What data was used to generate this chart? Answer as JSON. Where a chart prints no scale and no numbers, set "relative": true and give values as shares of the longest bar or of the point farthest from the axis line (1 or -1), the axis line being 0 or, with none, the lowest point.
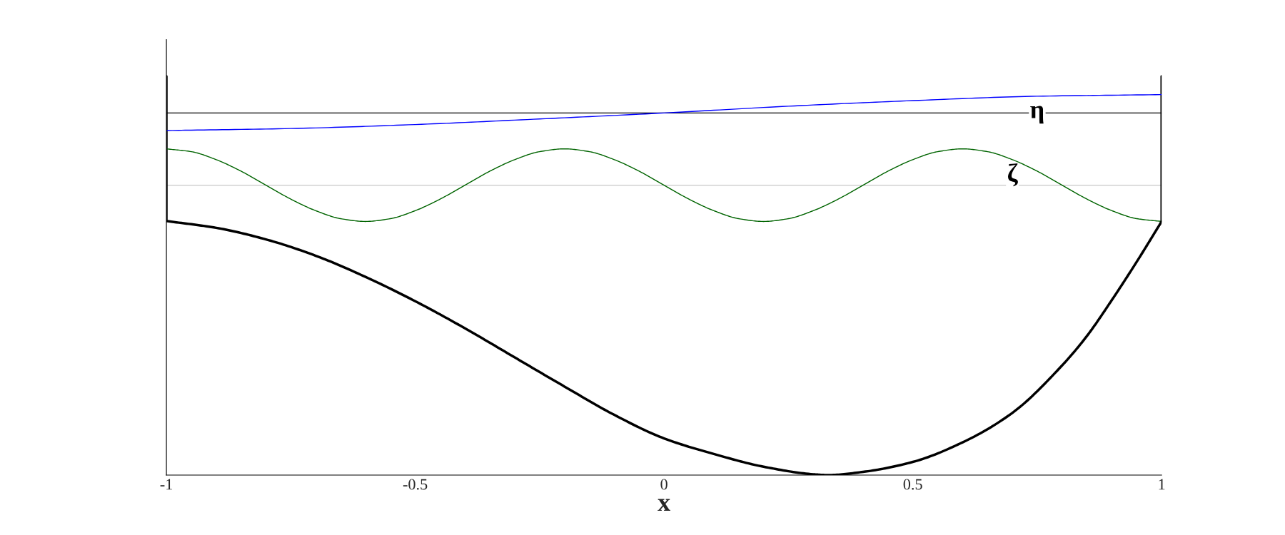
{
  "chart_data": {
    "type": "line",
    "relative": true,
    "xlabel": "x",
    "xlim": [
      -1,
      1
    ],
    "xticks": [
      -1,
      -0.5,
      0,
      0.5,
      1
    ],
    "tick_labels": "x",
    "grid": false,
    "legend": false,
    "series": [
      {
        "color": "#000000",
        "x": [
          -1,
          -1
        ],
        "values": [
          0.637,
          1.0
        ]
      },
      {
        "color": "#000000",
        "x": [
          1,
          1
        ],
        "values": [
          0.636,
          1.0
        ]
      },
      {
        "name": "η",
        "color": "#0000ff",
        "x": [
          -1,
          -0.75,
          -0.5,
          -0.25,
          0,
          0.25,
          0.5,
          0.75,
          1
        ],
        "values": [
          0.864,
          0.869,
          0.879,
          0.893,
          0.908,
          0.925,
          0.939,
          0.95,
          0.954
        ]
      },
      {
        "name": "ζ",
        "color": "#006400",
        "x": [
          -1,
          -0.95,
          -0.9,
          -0.85,
          -0.8,
          -0.75,
          -0.7,
          -0.65,
          -0.6,
          -0.55,
          -0.5,
          -0.45,
          -0.4,
          -0.35,
          -0.3,
          -0.25,
          -0.2,
          -0.15,
          -0.1,
          -0.05,
          0,
          0.05,
          0.1,
          0.15,
          0.2,
          0.25,
          0.3,
          0.35,
          0.4,
          0.45,
          0.5,
          0.55,
          0.6,
          0.65,
          0.7,
          0.75,
          0.8,
          0.85,
          0.9,
          0.95,
          1
        ],
        "values": [
          0.818,
          0.811,
          0.791,
          0.762,
          0.727,
          0.692,
          0.663,
          0.643,
          0.636,
          0.643,
          0.663,
          0.692,
          0.727,
          0.762,
          0.791,
          0.811,
          0.818,
          0.811,
          0.791,
          0.762,
          0.727,
          0.692,
          0.663,
          0.643,
          0.636,
          0.643,
          0.663,
          0.692,
          0.727,
          0.762,
          0.791,
          0.811,
          0.818,
          0.811,
          0.791,
          0.762,
          0.727,
          0.692,
          0.663,
          0.643,
          0.636
        ]
      },
      {
        "color": "#000000",
        "x": [
          -1,
          -0.9,
          -0.8,
          -0.7,
          -0.6,
          -0.5,
          -0.4,
          -0.3,
          -0.2,
          -0.1,
          0,
          0.1,
          0.2,
          0.3,
          0.33,
          0.4,
          0.5,
          0.6,
          0.7,
          0.8,
          0.85,
          0.9,
          0.95,
          1
        ],
        "values": [
          0.637,
          0.62,
          0.591,
          0.55,
          0.497,
          0.436,
          0.368,
          0.295,
          0.222,
          0.151,
          0.092,
          0.053,
          0.021,
          0.002,
          0.0,
          0.008,
          0.033,
          0.082,
          0.156,
          0.275,
          0.349,
          0.439,
          0.535,
          0.636
        ]
      }
    ],
    "ref_lines": [
      {
        "axis": "y",
        "value": 0.908,
        "color": "#000000"
      },
      {
        "axis": "y",
        "value": 0.727,
        "color": "#c8c8c8"
      }
    ]
  }
}
